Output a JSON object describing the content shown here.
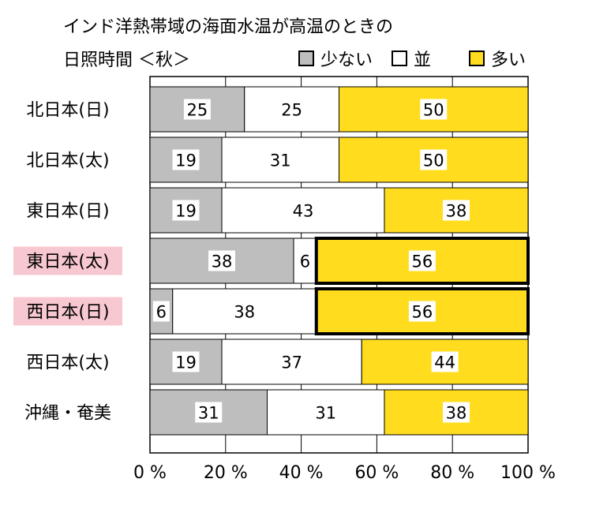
{
  "chart_data": {
    "type": "bar",
    "orientation": "horizontal",
    "stacked": true,
    "title_line1": "インド洋熱帯域の海面水温が高温のときの",
    "title_line2": "日照時間 ＜秋＞",
    "categories": [
      "北日本(日)",
      "北日本(太)",
      "東日本(日)",
      "東日本(太)",
      "西日本(日)",
      "西日本(太)",
      "沖縄・奄美"
    ],
    "highlighted_categories": [
      "東日本(太)",
      "西日本(日)"
    ],
    "series": [
      {
        "name": "少ない",
        "color": "#bebebe",
        "values": [
          25,
          19,
          19,
          38,
          6,
          19,
          31
        ]
      },
      {
        "name": "並",
        "color": "#ffffff",
        "values": [
          25,
          31,
          43,
          6,
          38,
          37,
          31
        ]
      },
      {
        "name": "多い",
        "color": "#ffdc1e",
        "values": [
          50,
          50,
          38,
          56,
          56,
          44,
          38
        ]
      }
    ],
    "emphasized_segments": [
      {
        "category": "東日本(太)",
        "series": "多い"
      },
      {
        "category": "西日本(日)",
        "series": "多い"
      }
    ],
    "xlim": [
      0,
      100
    ],
    "x_ticks": [
      "0 %",
      "20 %",
      "40 %",
      "60 %",
      "80 %",
      "100 %"
    ],
    "grid": true,
    "legend_position": "top-right",
    "highlight_color": "#f8c8d0"
  }
}
